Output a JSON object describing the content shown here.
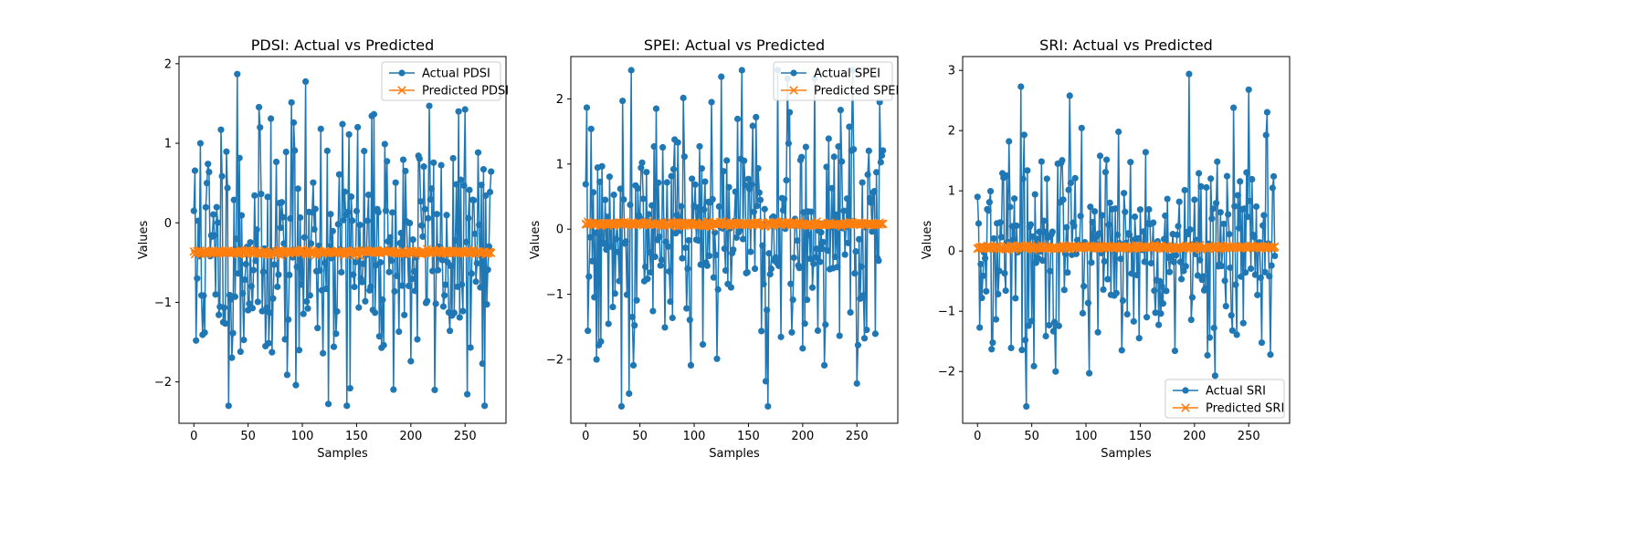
{
  "chart_data": [
    {
      "type": "line",
      "title": "PDSI: Actual vs Predicted",
      "xlabel": "Samples",
      "ylabel": "Values",
      "xlim": [
        -13.7,
        287.7
      ],
      "ylim": [
        -2.52,
        2.09
      ],
      "xticks": [
        0,
        50,
        100,
        150,
        200,
        250
      ],
      "yticks": [
        -2,
        -1,
        0,
        1,
        2
      ],
      "legend": "top-right",
      "grid": false,
      "series": [
        {
          "name": "Actual PDSI",
          "color": "#1f77b4",
          "marker": "circle",
          "mean": -0.35,
          "sd": 0.78,
          "seed": 11,
          "min": -2.3,
          "max": 1.87,
          "anchors": [
            [
              0,
              0.15
            ],
            [
              2,
              -1.48
            ],
            [
              6,
              1.0
            ],
            [
              10,
              -1.38
            ],
            [
              13,
              0.74
            ],
            [
              20,
              -0.9
            ],
            [
              25,
              1.17
            ],
            [
              27,
              -1.25
            ],
            [
              40,
              1.87
            ],
            [
              43,
              -1.62
            ],
            [
              66,
              -1.55
            ],
            [
              71,
              1.31
            ],
            [
              92,
              1.26
            ],
            [
              94,
              -2.04
            ],
            [
              97,
              -1.6
            ],
            [
              117,
              1.18
            ],
            [
              119,
              -1.64
            ],
            [
              137,
              1.24
            ],
            [
              141,
              -2.3
            ],
            [
              144,
              -2.08
            ],
            [
              176,
              0.99
            ],
            [
              200,
              -1.74
            ],
            [
              217,
              1.47
            ],
            [
              244,
              1.4
            ],
            [
              266,
              -1.77
            ]
          ]
        },
        {
          "name": "Predicted PDSI",
          "color": "#ff7f0e",
          "marker": "x",
          "mean": -0.37,
          "sd": 0.015,
          "seed": 21
        }
      ],
      "n_samples": 275
    },
    {
      "type": "line",
      "title": "SPEI: Actual vs Predicted",
      "xlabel": "Samples",
      "ylabel": "Values",
      "xlim": [
        -13.7,
        287.7
      ],
      "ylim": [
        -2.98,
        2.65
      ],
      "xticks": [
        0,
        50,
        100,
        150,
        200,
        250
      ],
      "yticks": [
        -2,
        -1,
        0,
        1,
        2
      ],
      "legend": "top-right",
      "grid": false,
      "series": [
        {
          "name": "Actual SPEI",
          "color": "#1f77b4",
          "marker": "circle",
          "mean": 0.0,
          "sd": 0.95,
          "seed": 12,
          "min": -2.72,
          "max": 2.44,
          "anchors": [
            [
              0,
              0.69
            ],
            [
              2,
              -1.56
            ],
            [
              10,
              -2.0
            ],
            [
              12,
              -1.78
            ],
            [
              34,
              1.97
            ],
            [
              42,
              2.44
            ],
            [
              44,
              -2.09
            ],
            [
              108,
              -1.77
            ],
            [
              116,
              1.95
            ],
            [
              121,
              -1.99
            ],
            [
              125,
              2.34
            ],
            [
              157,
              1.72
            ],
            [
              168,
              -2.72
            ],
            [
              200,
              -1.83
            ],
            [
              220,
              -2.09
            ],
            [
              235,
              1.83
            ],
            [
              271,
              1.95
            ]
          ]
        },
        {
          "name": "Predicted SPEI",
          "color": "#ff7f0e",
          "marker": "x",
          "mean": 0.08,
          "sd": 0.015,
          "seed": 22
        }
      ],
      "n_samples": 275
    },
    {
      "type": "line",
      "title": "SRI: Actual vs Predicted",
      "xlabel": "Samples",
      "ylabel": "Values",
      "xlim": [
        -13.7,
        287.7
      ],
      "ylim": [
        -2.86,
        3.23
      ],
      "xticks": [
        0,
        50,
        100,
        150,
        200,
        250
      ],
      "yticks": [
        -2,
        -1,
        0,
        1,
        2,
        3
      ],
      "legend": "bottom-right",
      "grid": false,
      "series": [
        {
          "name": "Actual SRI",
          "color": "#1f77b4",
          "marker": "circle",
          "mean": 0.05,
          "sd": 0.85,
          "seed": 13,
          "min": -2.58,
          "max": 2.94,
          "anchors": [
            [
              0,
              0.9
            ],
            [
              2,
              -1.27
            ],
            [
              13,
              -1.63
            ],
            [
              14,
              -1.52
            ],
            [
              40,
              2.73
            ],
            [
              43,
              1.93
            ],
            [
              45,
              -2.58
            ],
            [
              47,
              -1.24
            ],
            [
              72,
              -2.0
            ],
            [
              85,
              2.58
            ],
            [
              103,
              -2.03
            ],
            [
              130,
              1.98
            ],
            [
              195,
              2.94
            ],
            [
              219,
              -2.07
            ],
            [
              236,
              2.38
            ],
            [
              250,
              2.68
            ],
            [
              270,
              -1.72
            ]
          ]
        },
        {
          "name": "Predicted SRI",
          "color": "#ff7f0e",
          "marker": "x",
          "mean": 0.06,
          "sd": 0.015,
          "seed": 23
        }
      ],
      "n_samples": 275
    }
  ]
}
